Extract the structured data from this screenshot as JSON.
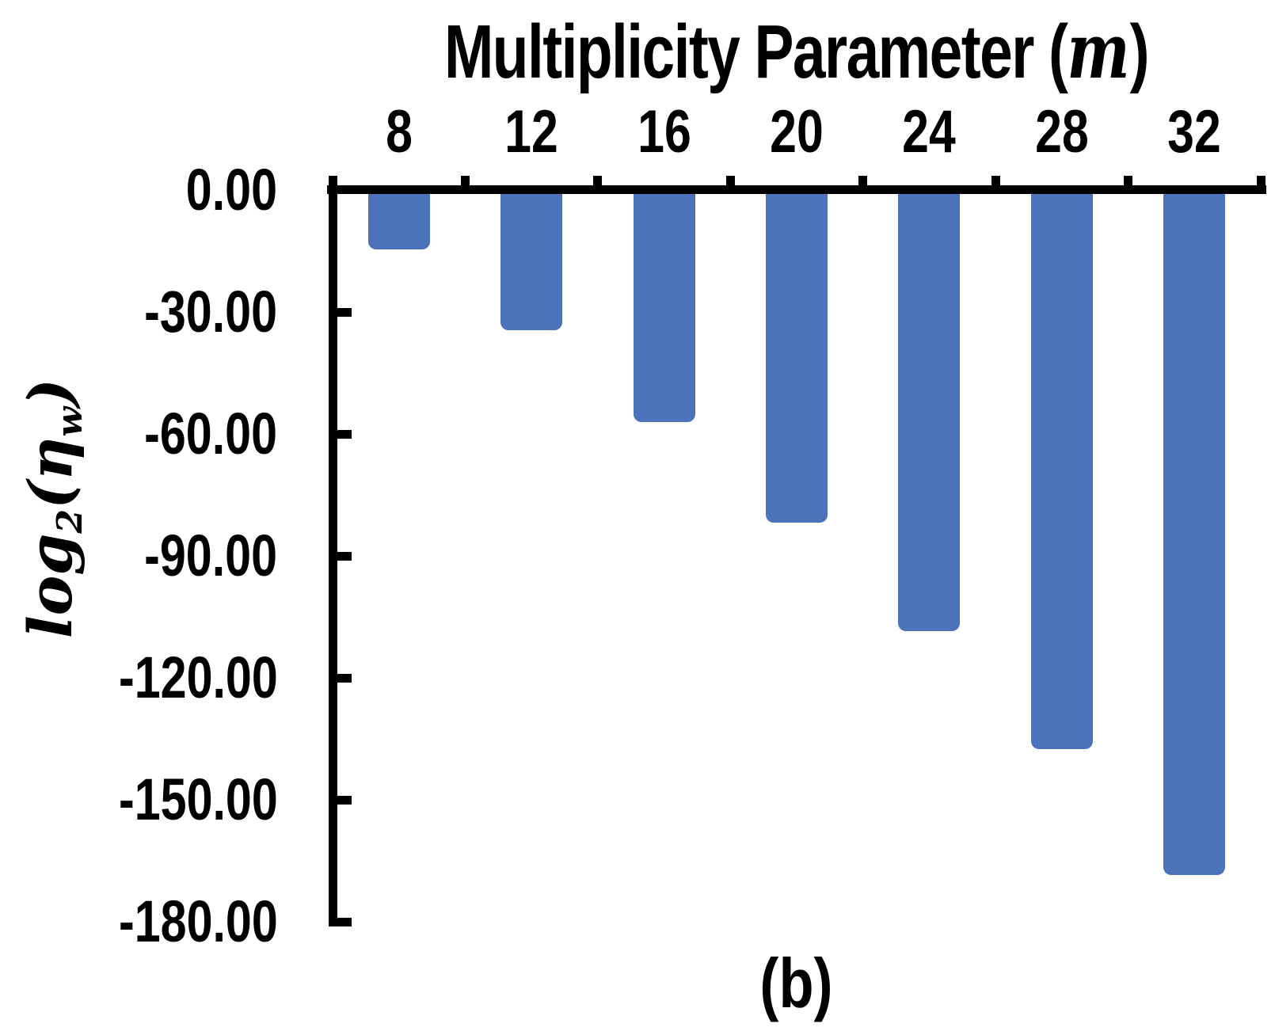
{
  "chart_data": {
    "type": "bar",
    "title": "",
    "xlabel": "Multiplicity Parameter (m)",
    "xlabel_parts": {
      "prefix": "Multiplicity Parameter (",
      "var": "m",
      "suffix": ")"
    },
    "ylabel": "log2(η_w)",
    "ylabel_parts": {
      "func": "log",
      "func_sub": "2",
      "open": "(",
      "sym": "η",
      "sym_sub": "w",
      "close": ")"
    },
    "categories": [
      "8",
      "12",
      "16",
      "20",
      "24",
      "28",
      "32"
    ],
    "series": [
      {
        "name": "log2(eta_w)",
        "values": [
          -14.6,
          -34.5,
          -57.1,
          -81.8,
          -108.5,
          -137.5,
          -168.5
        ]
      }
    ],
    "y_tick_labels": [
      "0.00",
      "-30.00",
      "-60.00",
      "-90.00",
      "-120.00",
      "-150.00",
      "-180.00"
    ],
    "ylim": [
      0,
      -180
    ],
    "y_tick_step": 30,
    "x_axis_position": "top",
    "grid": false,
    "legend": null,
    "caption": "(b)",
    "colors": {
      "bar": "#4C72BC",
      "axis": "#000000",
      "text": "#000000",
      "background": "#FFFFFF"
    }
  }
}
